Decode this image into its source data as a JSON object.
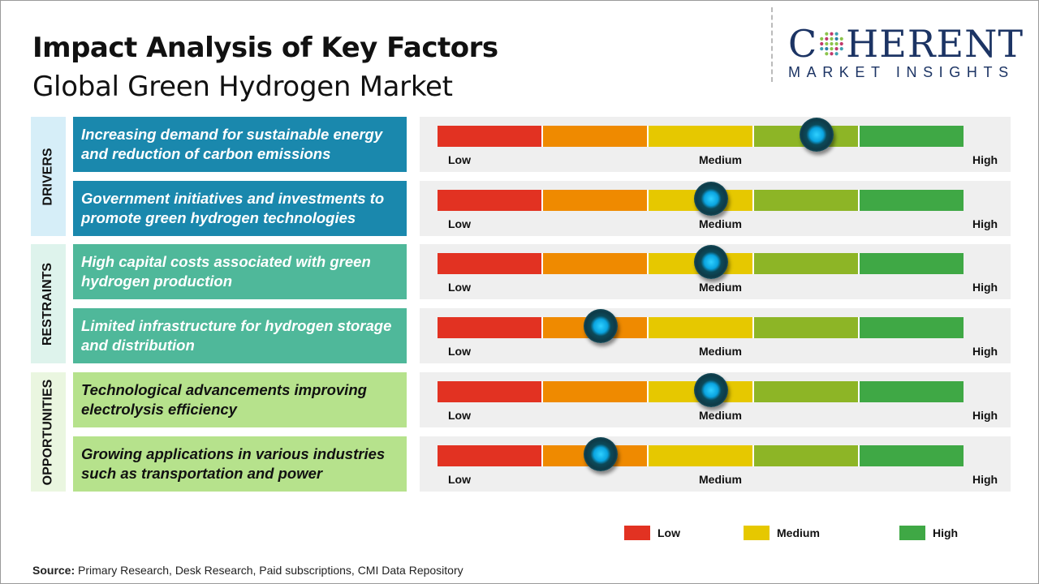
{
  "title": "Impact Analysis of Key Factors",
  "subtitle": "Global Green Hydrogen Market",
  "logo": {
    "top": "COHERENT",
    "bottom": "MARKET INSIGHTS"
  },
  "scale_labels": {
    "low": "Low",
    "medium": "Medium",
    "high": "High"
  },
  "colors": {
    "red": "#e23222",
    "orange": "#ef8a00",
    "yellow": "#e6c800",
    "olive": "#8db526",
    "green": "#3fa845",
    "drivers": "#1a88ad",
    "restraints": "#4fb89a",
    "opportunities": "#b6e28c"
  },
  "chart_data": {
    "type": "gauge",
    "scale": [
      "Low",
      "Medium",
      "High"
    ],
    "categories": [
      {
        "label": "DRIVERS",
        "color": "#1a88ad",
        "bg": "#d6eef8",
        "text_color": "#ffffff",
        "factors": [
          {
            "text": "Increasing demand for sustainable energy and reduction of carbon emissions",
            "level_pct": 72
          },
          {
            "text": "Government initiatives and investments to promote green hydrogen technologies",
            "level_pct": 52
          }
        ]
      },
      {
        "label": "RESTRAINTS",
        "color": "#4fb89a",
        "bg": "#def3ec",
        "text_color": "#ffffff",
        "factors": [
          {
            "text": "High capital costs associated with green hydrogen production",
            "level_pct": 52
          },
          {
            "text": "Limited infrastructure for hydrogen storage and distribution",
            "level_pct": 31
          }
        ]
      },
      {
        "label": "OPPORTUNITIES",
        "color": "#b6e28c",
        "bg": "#eaf6e0",
        "text_color": "#111111",
        "factors": [
          {
            "text": "Technological advancements improving electrolysis efficiency",
            "level_pct": 52
          },
          {
            "text": "Growing applications in various industries such as transportation and power",
            "level_pct": 31
          }
        ]
      }
    ],
    "legend": [
      {
        "label": "Low",
        "color": "#e23222"
      },
      {
        "label": "Medium",
        "color": "#e6c800"
      },
      {
        "label": "High",
        "color": "#3fa845"
      }
    ]
  },
  "source": {
    "label": "Source:",
    "text": " Primary Research, Desk Research, Paid subscriptions, CMI Data Repository"
  }
}
